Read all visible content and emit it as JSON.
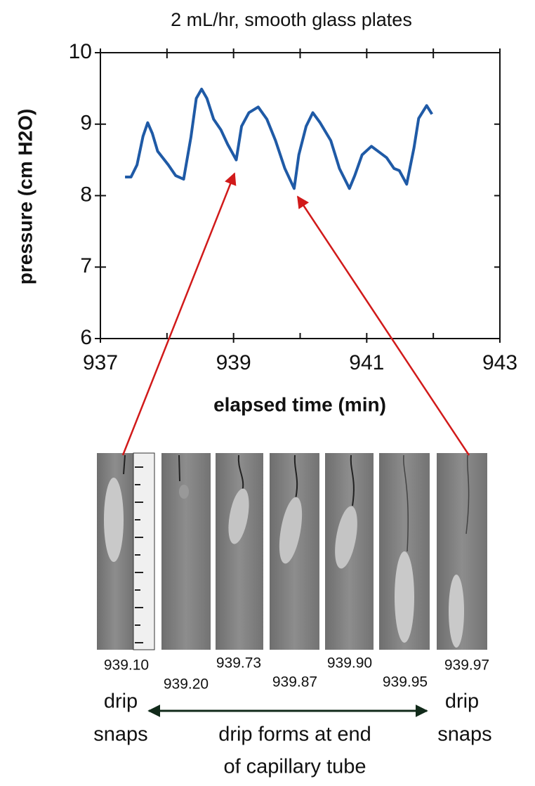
{
  "chart_data": {
    "type": "line",
    "title": "2 mL/hr, smooth glass plates",
    "x_label": "elapsed time (min)",
    "y_label": "pressure (cm H2O)",
    "x": [
      937.37,
      937.46,
      937.55,
      937.64,
      937.71,
      937.78,
      937.86,
      938.02,
      938.13,
      938.25,
      938.36,
      938.44,
      938.52,
      938.6,
      938.7,
      938.81,
      938.91,
      939.04,
      939.12,
      939.23,
      939.37,
      939.5,
      939.63,
      939.77,
      939.91,
      939.98,
      940.09,
      940.19,
      940.3,
      940.46,
      940.59,
      940.74,
      940.82,
      940.93,
      941.07,
      941.2,
      941.3,
      941.41,
      941.49,
      941.6,
      941.71,
      941.78,
      941.9,
      941.98
    ],
    "values": [
      8.26,
      8.26,
      8.43,
      8.83,
      9.02,
      8.87,
      8.62,
      8.43,
      8.28,
      8.23,
      8.82,
      9.36,
      9.49,
      9.36,
      9.07,
      8.92,
      8.72,
      8.5,
      8.97,
      9.16,
      9.24,
      9.07,
      8.77,
      8.38,
      8.1,
      8.57,
      8.97,
      9.16,
      9.02,
      8.77,
      8.38,
      8.1,
      8.28,
      8.57,
      8.69,
      8.6,
      8.53,
      8.38,
      8.35,
      8.16,
      8.67,
      9.08,
      9.26,
      9.14
    ],
    "color": "#1f5aa6",
    "xlim": [
      937,
      943
    ],
    "xticks": [
      937,
      939,
      941,
      943
    ],
    "x_minor_ticks": [
      938,
      940,
      942
    ],
    "ylim": [
      6,
      10
    ],
    "yticks": [
      6,
      7,
      8,
      9,
      10
    ]
  },
  "photos": {
    "labels": [
      "939.10",
      "939.20",
      "939.73",
      "939.87",
      "939.90",
      "939.95",
      "939.97"
    ]
  },
  "caption": {
    "left": [
      "drip",
      "snaps"
    ],
    "middle": [
      "drip forms at end",
      "of capillary tube"
    ],
    "right": [
      "drip",
      "snaps"
    ]
  }
}
